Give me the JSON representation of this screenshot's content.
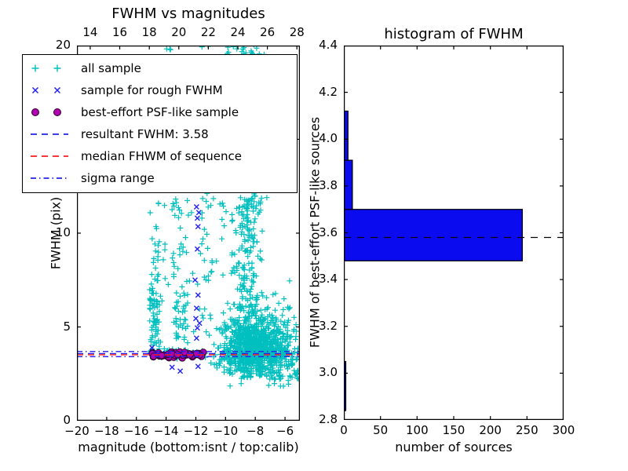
{
  "legend": {
    "entries": [
      {
        "label": "all sample",
        "marker": "plus",
        "color": "#00BFBF"
      },
      {
        "label": "sample for rough FWHM",
        "marker": "x",
        "color": "#2222EE"
      },
      {
        "label": "best-effort PSF-like sample",
        "marker": "circle",
        "color": "#B000B0",
        "edge": "#2A052A"
      },
      {
        "label": "resultant FWHM: 3.58",
        "marker": "line-dashed",
        "color": "#2222EE"
      },
      {
        "label": "median FHWM of sequence",
        "marker": "line-dashed",
        "color": "#FF1A1A"
      },
      {
        "label": "sigma range",
        "marker": "line-dashdot",
        "color": "#2222EE"
      }
    ]
  },
  "chart_data": [
    {
      "type": "scatter",
      "title": "FWHM vs magnitudes",
      "xlabel": "magnitude (bottom:isnt / top:calib)",
      "ylabel": "FWHM (pix)",
      "xlim": [
        -20,
        -5
      ],
      "xlim_top": [
        13.1,
        28.2
      ],
      "ylim": [
        0,
        20
      ],
      "xticks_bottom": {
        "values": [
          -20,
          -18,
          -16,
          -14,
          -12,
          -10,
          -8,
          -6
        ],
        "labels": [
          "−20",
          "−18",
          "−16",
          "−14",
          "−12",
          "−10",
          "−8",
          "−6"
        ]
      },
      "xticks_top": {
        "values": [
          14,
          16,
          18,
          20,
          22,
          24,
          26,
          28
        ],
        "labels": [
          "14",
          "16",
          "18",
          "20",
          "22",
          "24",
          "26",
          "28"
        ]
      },
      "yticks": {
        "values": [
          0,
          5,
          10,
          15,
          20
        ],
        "labels": [
          "0",
          "5",
          "10",
          "15",
          "20"
        ]
      },
      "grid": false,
      "legend_position": "upper left",
      "series": [
        {
          "name": "all sample",
          "marker": "plus",
          "color": "#00BFBF",
          "clusters": [
            {
              "n": 55,
              "x": [
                "u",
                -15.1,
                -14.45
              ],
              "y": [
                "n",
                4.6,
                1.3,
                3.3,
                9.0
              ]
            },
            {
              "n": 18,
              "x": [
                "u",
                -15.05,
                -14.5
              ],
              "y": [
                "u",
                6.0,
                10.4
              ]
            },
            {
              "n": 45,
              "x": [
                "u",
                -13.5,
                -12.55
              ],
              "y": [
                "n",
                5.2,
                1.8,
                3.4,
                11.2
              ]
            },
            {
              "n": 10,
              "x": [
                "u",
                -13.45,
                -12.6
              ],
              "y": [
                "u",
                8.0,
                11.5
              ]
            },
            {
              "n": 22,
              "x": [
                "u",
                -11.7,
                -10.9
              ],
              "y": [
                "u",
                4.2,
                13.0
              ]
            },
            {
              "n": 850,
              "x": [
                "n",
                -8.2,
                1.05,
                -10.9,
                -5.1
              ],
              "y": [
                "n",
                3.9,
                1.0,
                2.3,
                6.6
              ]
            },
            {
              "n": 150,
              "x": [
                "n",
                -8.5,
                1.3,
                -11.0,
                -5.1
              ],
              "y": [
                "n",
                3.45,
                0.35,
                2.6,
                4.4
              ]
            },
            {
              "n": 150,
              "x": [
                "n",
                -8.6,
                0.55,
                -9.6,
                -7.2
              ],
              "y": [
                "u",
                6.0,
                12.0
              ]
            },
            {
              "n": 110,
              "x": [
                "n",
                -8.4,
                0.45,
                -9.4,
                -7.3
              ],
              "y": [
                "u",
                11.0,
                19.9
              ]
            },
            {
              "n": 16,
              "x": [
                "u",
                -10.1,
                -7.5
              ],
              "y": [
                "u",
                19.55,
                20.3
              ]
            },
            {
              "n": 3,
              "x": [
                "u",
                -14.05,
                -13.5
              ],
              "y": [
                "u",
                19.6,
                20.2
              ]
            },
            {
              "n": 4,
              "x": [
                "u",
                -11.6,
                -11.05
              ],
              "y": [
                "u",
                19.6,
                20.25
              ]
            },
            {
              "n": 55,
              "x": [
                "u",
                -15.1,
                -10.9
              ],
              "y": [
                "u",
                4.0,
                12.0
              ]
            },
            {
              "n": 30,
              "x": [
                "u",
                -10.9,
                -9.3
              ],
              "y": [
                "u",
                6.5,
                19.5
              ]
            },
            {
              "n": 110,
              "x": [
                "u",
                -7.1,
                -5.05
              ],
              "y": [
                "n",
                3.3,
                1.0,
                1.7,
                6.2
              ]
            },
            {
              "n": 16,
              "x": [
                "u",
                -9.8,
                -5.3
              ],
              "y": [
                "u",
                1.8,
                2.9
              ]
            },
            {
              "n": 45,
              "x": [
                "u",
                -14.95,
                -11.2
              ],
              "y": [
                "n",
                3.55,
                0.14,
                3.1,
                4.0
              ]
            },
            {
              "n": 10,
              "x": [
                "u",
                -6.9,
                -5.1
              ],
              "y": [
                "u",
                4.5,
                7.5
              ]
            }
          ]
        },
        {
          "name": "sample for rough FWHM",
          "marker": "x",
          "color": "#2222EE",
          "points": [
            [
              -11.95,
              11.4
            ],
            [
              -11.8,
              11.1
            ],
            [
              -11.9,
              10.8
            ],
            [
              -11.85,
              10.35
            ],
            [
              -11.9,
              9.15
            ],
            [
              -12.05,
              7.5
            ],
            [
              -11.85,
              6.7
            ],
            [
              -11.95,
              6.0
            ],
            [
              -12.0,
              5.45
            ],
            [
              -11.75,
              5.2
            ],
            [
              -11.9,
              4.95
            ],
            [
              -11.95,
              4.4
            ],
            [
              -11.85,
              2.9
            ],
            [
              -13.6,
              2.85
            ],
            [
              -13.05,
              2.65
            ],
            [
              -14.95,
              3.9
            ]
          ],
          "clusters": [
            {
              "n": 9,
              "x": [
                "u",
                -14.9,
                -11.45
              ],
              "y": [
                "n",
                3.5,
                0.13,
                3.2,
                3.85
              ]
            }
          ]
        },
        {
          "name": "best-effort PSF-like sample",
          "marker": "circle",
          "color": "#B000B0",
          "edge": "#2A052A",
          "clusters": [
            {
              "n": 52,
              "x": [
                "u",
                -14.95,
                -11.35
              ],
              "y": [
                "n",
                3.5,
                0.085,
                3.3,
                3.72
              ]
            }
          ]
        }
      ],
      "lines": [
        {
          "name": "resultant FWHM: 3.58",
          "y": 3.58,
          "color": "#2222EE",
          "style": "dashed"
        },
        {
          "name": "median FHWM of sequence",
          "y": 3.52,
          "color": "#FF1A1A",
          "style": "dashed"
        },
        {
          "name": "sigma range upper",
          "y": 3.69,
          "color": "#2222EE",
          "style": "dashdot"
        },
        {
          "name": "sigma range lower",
          "y": 3.42,
          "color": "#2222EE",
          "style": "dashdot"
        }
      ]
    },
    {
      "type": "histogram-horizontal",
      "title": "histogram of FWHM",
      "xlabel": "number of sources",
      "ylabel": "FWHM of best-effort PSF-like sources",
      "xlim": [
        0,
        300
      ],
      "ylim": [
        2.8,
        4.4
      ],
      "xticks": {
        "values": [
          0,
          50,
          100,
          150,
          200,
          250,
          300
        ],
        "labels": [
          "0",
          "50",
          "100",
          "150",
          "200",
          "250",
          "300"
        ]
      },
      "yticks": {
        "values": [
          2.8,
          3.0,
          3.2,
          3.4,
          3.6,
          3.8,
          4.0,
          4.2,
          4.4
        ],
        "labels": [
          "2.8",
          "3.0",
          "3.2",
          "3.4",
          "3.6",
          "3.8",
          "4.0",
          "4.2",
          "4.4"
        ]
      },
      "bin_edges": [
        2.84,
        3.05,
        3.27,
        3.48,
        3.7,
        3.91,
        4.12
      ],
      "counts": [
        2,
        0,
        0,
        243,
        11,
        5
      ],
      "bar_color": "#0B0BF0",
      "bar_edge": "#000000",
      "grid": false,
      "lines": [
        {
          "name": "resultant FWHM",
          "y": 3.58,
          "color": "#000000",
          "style": "dashed"
        }
      ]
    }
  ]
}
